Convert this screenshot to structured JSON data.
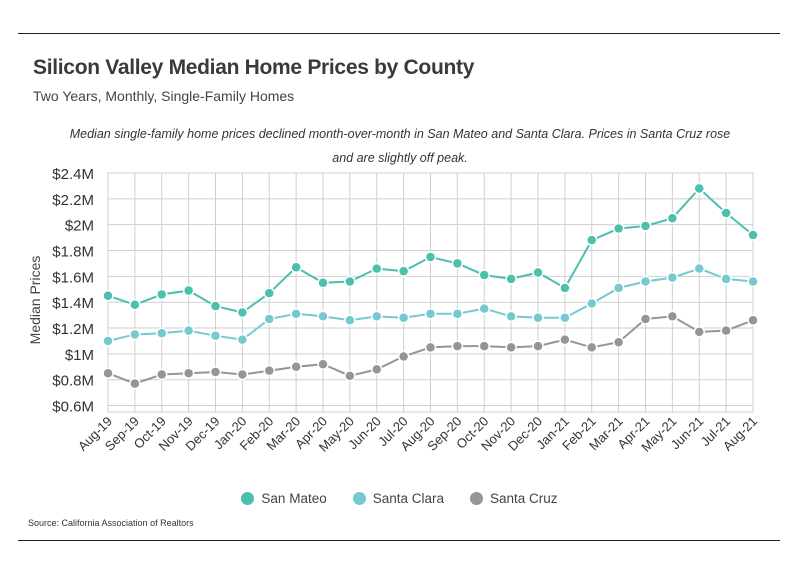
{
  "title": "Silicon Valley Median Home Prices by County",
  "subtitle": "Two Years, Monthly, Single-Family Homes",
  "note": "Median single-family home prices declined month-over-month in San Mateo and Santa Clara. Prices in Santa Cruz rose and are slightly off peak.",
  "source": "Source:  California Association of Realtors",
  "chart_data": {
    "type": "line",
    "title": "Silicon Valley Median Home Prices by County",
    "xlabel": "",
    "ylabel": "Median Prices",
    "ylim": [
      0.55,
      2.4
    ],
    "yticks": [
      {
        "value": 0.6,
        "label": "$0.6M"
      },
      {
        "value": 0.8,
        "label": "$0.8M"
      },
      {
        "value": 1.0,
        "label": "$1M"
      },
      {
        "value": 1.2,
        "label": "$1.2M"
      },
      {
        "value": 1.4,
        "label": "$1.4M"
      },
      {
        "value": 1.6,
        "label": "$1.6M"
      },
      {
        "value": 1.8,
        "label": "$1.8M"
      },
      {
        "value": 2.0,
        "label": "$2M"
      },
      {
        "value": 2.2,
        "label": "$2.2M"
      },
      {
        "value": 2.4,
        "label": "$2.4M"
      }
    ],
    "categories": [
      "Aug-19",
      "Sep-19",
      "Oct-19",
      "Nov-19",
      "Dec-19",
      "Jan-20",
      "Feb-20",
      "Mar-20",
      "Apr-20",
      "May-20",
      "Jun-20",
      "Jul-20",
      "Aug-20",
      "Sep-20",
      "Oct-20",
      "Nov-20",
      "Dec-20",
      "Jan-21",
      "Feb-21",
      "Mar-21",
      "Apr-21",
      "May-21",
      "Jun-21",
      "Jul-21",
      "Aug-21"
    ],
    "series": [
      {
        "name": "San Mateo",
        "color": "#4dbfad",
        "values": [
          1.45,
          1.38,
          1.46,
          1.49,
          1.37,
          1.32,
          1.47,
          1.67,
          1.55,
          1.56,
          1.66,
          1.64,
          1.75,
          1.7,
          1.61,
          1.58,
          1.63,
          1.51,
          1.88,
          1.97,
          1.99,
          2.05,
          2.28,
          2.09,
          1.92
        ]
      },
      {
        "name": "Santa Clara",
        "color": "#76c9cf",
        "values": [
          1.1,
          1.15,
          1.16,
          1.18,
          1.14,
          1.11,
          1.27,
          1.31,
          1.29,
          1.26,
          1.29,
          1.28,
          1.31,
          1.31,
          1.35,
          1.29,
          1.28,
          1.28,
          1.39,
          1.51,
          1.56,
          1.59,
          1.66,
          1.58,
          1.56
        ]
      },
      {
        "name": "Santa Cruz",
        "color": "#959595",
        "values": [
          0.85,
          0.77,
          0.84,
          0.85,
          0.86,
          0.84,
          0.87,
          0.9,
          0.92,
          0.83,
          0.88,
          0.98,
          1.05,
          1.06,
          1.06,
          1.05,
          1.06,
          1.11,
          1.05,
          1.09,
          1.27,
          1.29,
          1.17,
          1.18,
          1.26
        ]
      }
    ],
    "legend_position": "bottom-center",
    "grid": true
  }
}
